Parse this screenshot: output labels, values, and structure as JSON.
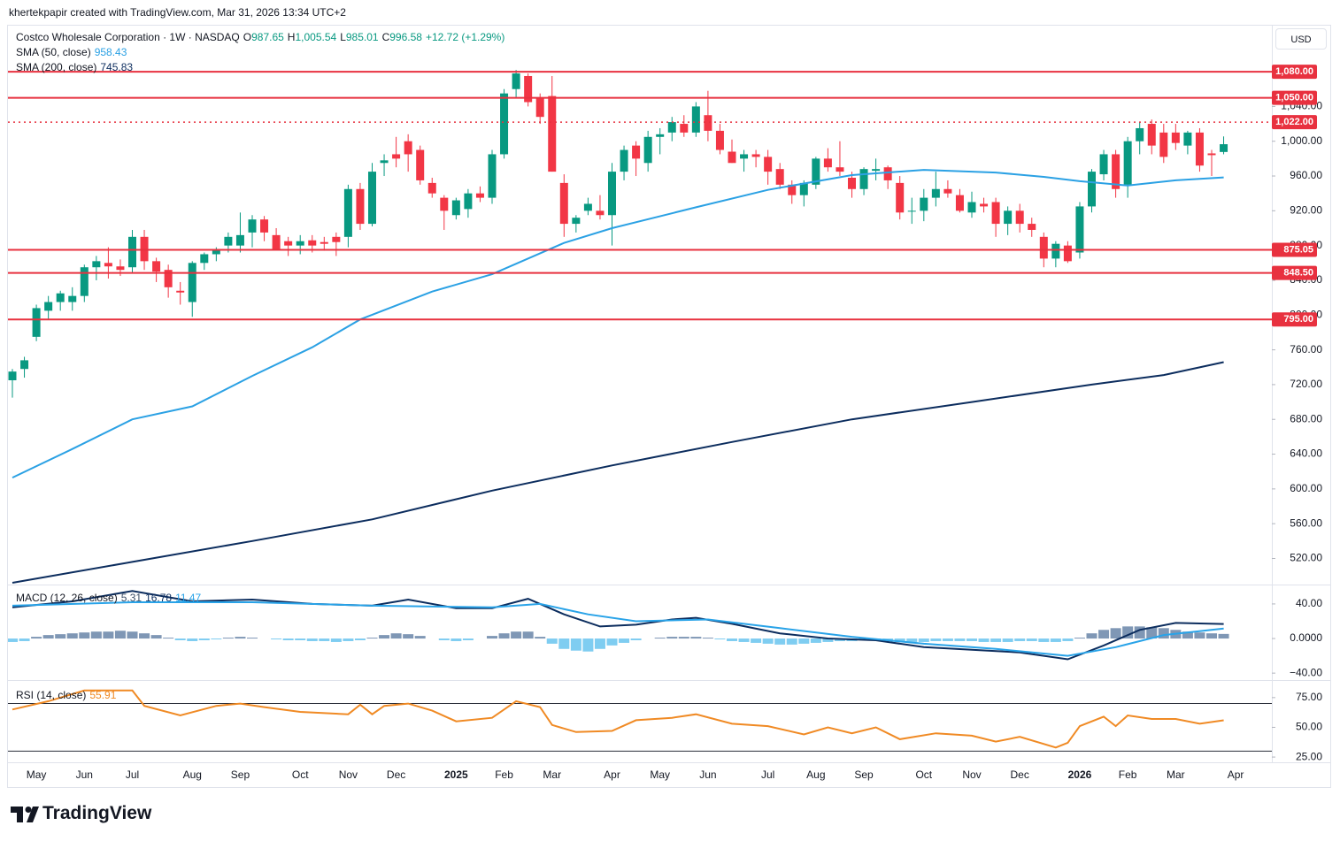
{
  "header": "khertekpapir created with TradingView.com, Mar 31, 2026 13:34 UTC+2",
  "footer": {
    "brand": "TradingView"
  },
  "chart_data": [
    {
      "type": "candlestick",
      "title": "Costco Wholesale Corporation · 1W · NASDAQ",
      "legend": [
        {
          "key": "O",
          "value": "987.65"
        },
        {
          "key": "H",
          "value": "1,005.54"
        },
        {
          "key": "L",
          "value": "985.01"
        },
        {
          "key": "C",
          "value": "996.58"
        }
      ],
      "change": "+12.72 (+1.29%)",
      "currency": "USD",
      "up_color": "#089981",
      "down_color": "#f23645",
      "categories": [
        null,
        null,
        "May",
        null,
        null,
        null,
        "Jun",
        null,
        null,
        null,
        "Jul",
        null,
        null,
        null,
        null,
        "Aug",
        null,
        null,
        null,
        "Sep",
        null,
        null,
        null,
        null,
        "Oct",
        null,
        null,
        null,
        "Nov",
        null,
        null,
        null,
        "Dec",
        null,
        null,
        null,
        null,
        "2025",
        null,
        null,
        null,
        "Feb",
        null,
        null,
        null,
        "Mar",
        null,
        null,
        null,
        null,
        "Apr",
        null,
        null,
        null,
        "May",
        null,
        null,
        null,
        "Jun",
        null,
        null,
        null,
        null,
        "Jul",
        null,
        null,
        null,
        "Aug",
        null,
        null,
        null,
        "Sep",
        null,
        null,
        null,
        null,
        "Oct",
        null,
        null,
        null,
        "Nov",
        null,
        null,
        null,
        "Dec",
        null,
        null,
        null,
        null,
        "2026",
        null,
        null,
        null,
        "Feb",
        null,
        null,
        null,
        "Mar",
        null,
        null,
        null,
        null,
        "Apr"
      ],
      "open": [
        725,
        738,
        775,
        805,
        815,
        815,
        822,
        855,
        860,
        856,
        855,
        890,
        862,
        852,
        828,
        815,
        860,
        870,
        880,
        880,
        895,
        910,
        892,
        885,
        880,
        886,
        884,
        890,
        890,
        945,
        905,
        975,
        985,
        1000,
        990,
        952,
        935,
        915,
        922,
        940,
        935,
        985,
        1060,
        1075,
        1050,
        1052,
        952,
        905,
        920,
        920,
        915,
        965,
        995,
        975,
        1005,
        1010,
        1020,
        1010,
        1030,
        1012,
        988,
        980,
        985,
        982,
        968,
        950,
        938,
        950,
        980,
        970,
        958,
        945,
        966,
        970,
        952,
        920,
        920,
        935,
        945,
        938,
        918,
        928,
        930,
        905,
        920,
        905,
        890,
        865,
        880,
        872,
        925,
        962,
        985,
        950,
        1000,
        1020,
        1010,
        1010,
        995,
        1010,
        986,
        987.65,
        null
      ],
      "high": [
        738,
        752,
        812,
        822,
        828,
        832,
        858,
        868,
        878,
        864,
        898,
        898,
        866,
        858,
        838,
        862,
        872,
        878,
        895,
        918,
        915,
        914,
        900,
        890,
        892,
        892,
        890,
        895,
        950,
        952,
        975,
        985,
        1005,
        1008,
        995,
        958,
        938,
        935,
        945,
        948,
        990,
        1060,
        1082,
        1078,
        1055,
        1075,
        962,
        915,
        935,
        938,
        975,
        995,
        1000,
        1012,
        1015,
        1028,
        1030,
        1045,
        1058,
        1020,
        1002,
        990,
        990,
        990,
        975,
        955,
        955,
        982,
        992,
        1000,
        965,
        970,
        980,
        972,
        960,
        935,
        945,
        965,
        955,
        945,
        942,
        935,
        935,
        925,
        928,
        912,
        895,
        885,
        885,
        930,
        968,
        990,
        990,
        1005,
        1022,
        1025,
        1020,
        1020,
        1012,
        1015,
        990,
        1005.54,
        null
      ],
      "low": [
        705,
        728,
        770,
        795,
        805,
        805,
        815,
        840,
        842,
        845,
        848,
        852,
        838,
        820,
        812,
        798,
        852,
        862,
        872,
        872,
        878,
        885,
        878,
        868,
        870,
        872,
        874,
        868,
        878,
        898,
        902,
        960,
        970,
        965,
        950,
        935,
        898,
        910,
        912,
        930,
        928,
        980,
        1050,
        1040,
        1020,
        965,
        890,
        895,
        915,
        910,
        880,
        955,
        960,
        965,
        985,
        1000,
        1005,
        1005,
        1000,
        985,
        975,
        965,
        970,
        950,
        945,
        928,
        925,
        945,
        965,
        960,
        935,
        938,
        955,
        945,
        910,
        905,
        908,
        925,
        935,
        918,
        912,
        918,
        890,
        892,
        895,
        890,
        855,
        855,
        860,
        865,
        918,
        955,
        935,
        935,
        985,
        985,
        975,
        990,
        985,
        965,
        960,
        985.01,
        null
      ],
      "close": [
        735,
        748,
        808,
        815,
        825,
        822,
        855,
        862,
        856,
        852,
        890,
        862,
        850,
        832,
        826,
        860,
        870,
        875,
        890,
        892,
        910,
        895,
        876,
        880,
        885,
        880,
        882,
        884,
        945,
        905,
        965,
        978,
        980,
        985,
        955,
        940,
        920,
        932,
        940,
        935,
        985,
        1055,
        1078,
        1045,
        1028,
        965,
        905,
        912,
        928,
        915,
        965,
        990,
        980,
        1005,
        1008,
        1022,
        1010,
        1040,
        1012,
        990,
        975,
        985,
        982,
        965,
        950,
        938,
        952,
        980,
        970,
        965,
        945,
        968,
        968,
        955,
        918,
        920,
        935,
        945,
        940,
        920,
        930,
        925,
        905,
        920,
        905,
        898,
        865,
        882,
        862,
        925,
        965,
        985,
        945,
        1000,
        1015,
        995,
        982,
        998,
        1010,
        972,
        984,
        996.58,
        null
      ],
      "series": [
        {
          "name": "SMA (50, close)",
          "legend_value": "958.43",
          "color": "#2ba1e4",
          "x": [
            0,
            5,
            10,
            15,
            20,
            25,
            29,
            35,
            40,
            46,
            50,
            57,
            63,
            70,
            76,
            82,
            86,
            89,
            93,
            97,
            101
          ],
          "values": [
            613,
            646,
            680,
            695,
            730,
            763,
            795,
            827,
            847,
            883,
            900,
            924,
            944,
            961,
            967,
            964,
            959,
            954,
            949,
            955,
            958.43
          ]
        },
        {
          "name": "SMA (200, close)",
          "legend_value": "745.83",
          "color": "#0c2d5e",
          "x": [
            0,
            10,
            20,
            30,
            40,
            50,
            60,
            70,
            80,
            90,
            96,
            101
          ],
          "values": [
            492,
            516,
            540,
            565,
            598,
            627,
            654,
            680,
            700,
            720,
            731,
            745.83
          ]
        }
      ],
      "levels": [
        {
          "value": 1080,
          "label": "1,080.00",
          "style": "solid"
        },
        {
          "value": 1050,
          "label": "1,050.00",
          "style": "solid"
        },
        {
          "value": 1022,
          "label": "1,022.00",
          "style": "dotted"
        },
        {
          "value": 875.05,
          "label": "875.05",
          "style": "solid"
        },
        {
          "value": 848.5,
          "label": "848.50",
          "style": "solid"
        },
        {
          "value": 795,
          "label": "795.00",
          "style": "solid"
        }
      ],
      "level_color": "#e8313f",
      "ylim": [
        491,
        1134
      ],
      "yticks": [
        {
          "value": 520,
          "label": "520.00"
        },
        {
          "value": 560,
          "label": "560.00"
        },
        {
          "value": 600,
          "label": "600.00"
        },
        {
          "value": 640,
          "label": "640.00"
        },
        {
          "value": 680,
          "label": "680.00"
        },
        {
          "value": 720,
          "label": "720.00"
        },
        {
          "value": 760,
          "label": "760.00"
        },
        {
          "value": 800,
          "label": "800.00"
        },
        {
          "value": 840,
          "label": "840.00"
        },
        {
          "value": 880,
          "label": "880.00"
        },
        {
          "value": 920,
          "label": "920.00"
        },
        {
          "value": 960,
          "label": "960.00"
        },
        {
          "value": 1000,
          "label": "1,000.00"
        },
        {
          "value": 1040,
          "label": "1,040.00"
        }
      ],
      "grid": false
    },
    {
      "type": "macd",
      "title": "MACD (12, 26, close)",
      "histogram": {
        "legend_value": "5.31",
        "color": "#7f97b5",
        "negative_color": "#7fcdf1",
        "values": [
          -4,
          -3,
          2,
          4,
          5,
          6,
          7,
          8,
          8,
          9,
          8,
          6,
          4,
          1,
          -2,
          -3,
          -2,
          -1,
          1,
          2,
          1,
          0,
          -1,
          -2,
          -2,
          -3,
          -3,
          -4,
          -3,
          -2,
          1,
          4,
          6,
          5,
          3,
          0,
          -2,
          -3,
          -2,
          0,
          3,
          6,
          8,
          8,
          2,
          -6,
          -12,
          -14,
          -15,
          -12,
          -8,
          -5,
          -2,
          0,
          1,
          2,
          2,
          2,
          1,
          -1,
          -3,
          -4,
          -5,
          -6,
          -7,
          -7,
          -6,
          -5,
          -4,
          -3,
          -3,
          -2,
          -2,
          -3,
          -4,
          -4,
          -4,
          -3,
          -3,
          -3,
          -3,
          -4,
          -4,
          -4,
          -3,
          -3,
          -4,
          -4,
          -3,
          1,
          6,
          10,
          12,
          14,
          14,
          13,
          12,
          10,
          8,
          7,
          6,
          5.31,
          null
        ]
      },
      "series": [
        {
          "legend_value": "16.78",
          "color": "#0c2d5e",
          "x": [
            0,
            5,
            10,
            15,
            20,
            25,
            30,
            33,
            37,
            40,
            43,
            46,
            49,
            52,
            55,
            57,
            60,
            64,
            68,
            72,
            76,
            80,
            84,
            88,
            91,
            94,
            97,
            101
          ],
          "values": [
            36,
            43,
            55,
            43,
            45,
            40,
            38,
            45,
            35,
            35,
            46,
            28,
            14,
            16,
            22,
            24,
            17,
            6,
            0,
            -2,
            -10,
            -13,
            -16,
            -24,
            -8,
            10,
            18,
            16.78
          ]
        },
        {
          "legend_value": "11.47",
          "color": "#29a3e8",
          "x": [
            0,
            10,
            20,
            30,
            40,
            44,
            48,
            52,
            58,
            64,
            70,
            76,
            82,
            88,
            92,
            96,
            101
          ],
          "values": [
            38,
            42,
            42,
            38,
            36,
            40,
            28,
            20,
            22,
            12,
            2,
            -6,
            -12,
            -20,
            -10,
            4,
            11.47
          ]
        }
      ],
      "ylim": [
        -47,
        61.4
      ],
      "yticks": [
        {
          "value": 40,
          "label": "40.00"
        },
        {
          "value": 0,
          "label": "0.0000"
        },
        {
          "value": -40,
          "label": "−40.00"
        }
      ]
    },
    {
      "type": "rsi",
      "title": "RSI (14, close)",
      "series": [
        {
          "legend_value": "55.91",
          "color": "#f08a24",
          "x": [
            0,
            3,
            6,
            10,
            11,
            14,
            17,
            19,
            21,
            24,
            28,
            29,
            30,
            31,
            33,
            35,
            37,
            40,
            42,
            44,
            45,
            47,
            50,
            52,
            55,
            57,
            60,
            63,
            66,
            68,
            70,
            72,
            74,
            77,
            80,
            82,
            84,
            87,
            88,
            89,
            91,
            92,
            93,
            95,
            97,
            99,
            101
          ],
          "values": [
            65,
            72,
            81,
            81,
            68,
            60,
            68,
            70,
            67,
            63,
            61,
            69,
            61,
            68,
            70,
            64,
            55,
            58,
            72,
            67,
            52,
            46,
            47,
            56,
            58,
            61,
            53,
            51,
            44,
            50,
            45,
            50,
            40,
            45,
            43,
            38,
            42,
            33,
            37,
            51,
            59,
            51,
            60,
            57,
            57,
            53,
            55.91
          ]
        }
      ],
      "bands": [
        70,
        30
      ],
      "band_color": "#2a2e39",
      "ylim": [
        20.6,
        89
      ],
      "yticks": [
        {
          "value": 75,
          "label": "75.00"
        },
        {
          "value": 50,
          "label": "50.00"
        },
        {
          "value": 25,
          "label": "25.00"
        }
      ]
    }
  ]
}
